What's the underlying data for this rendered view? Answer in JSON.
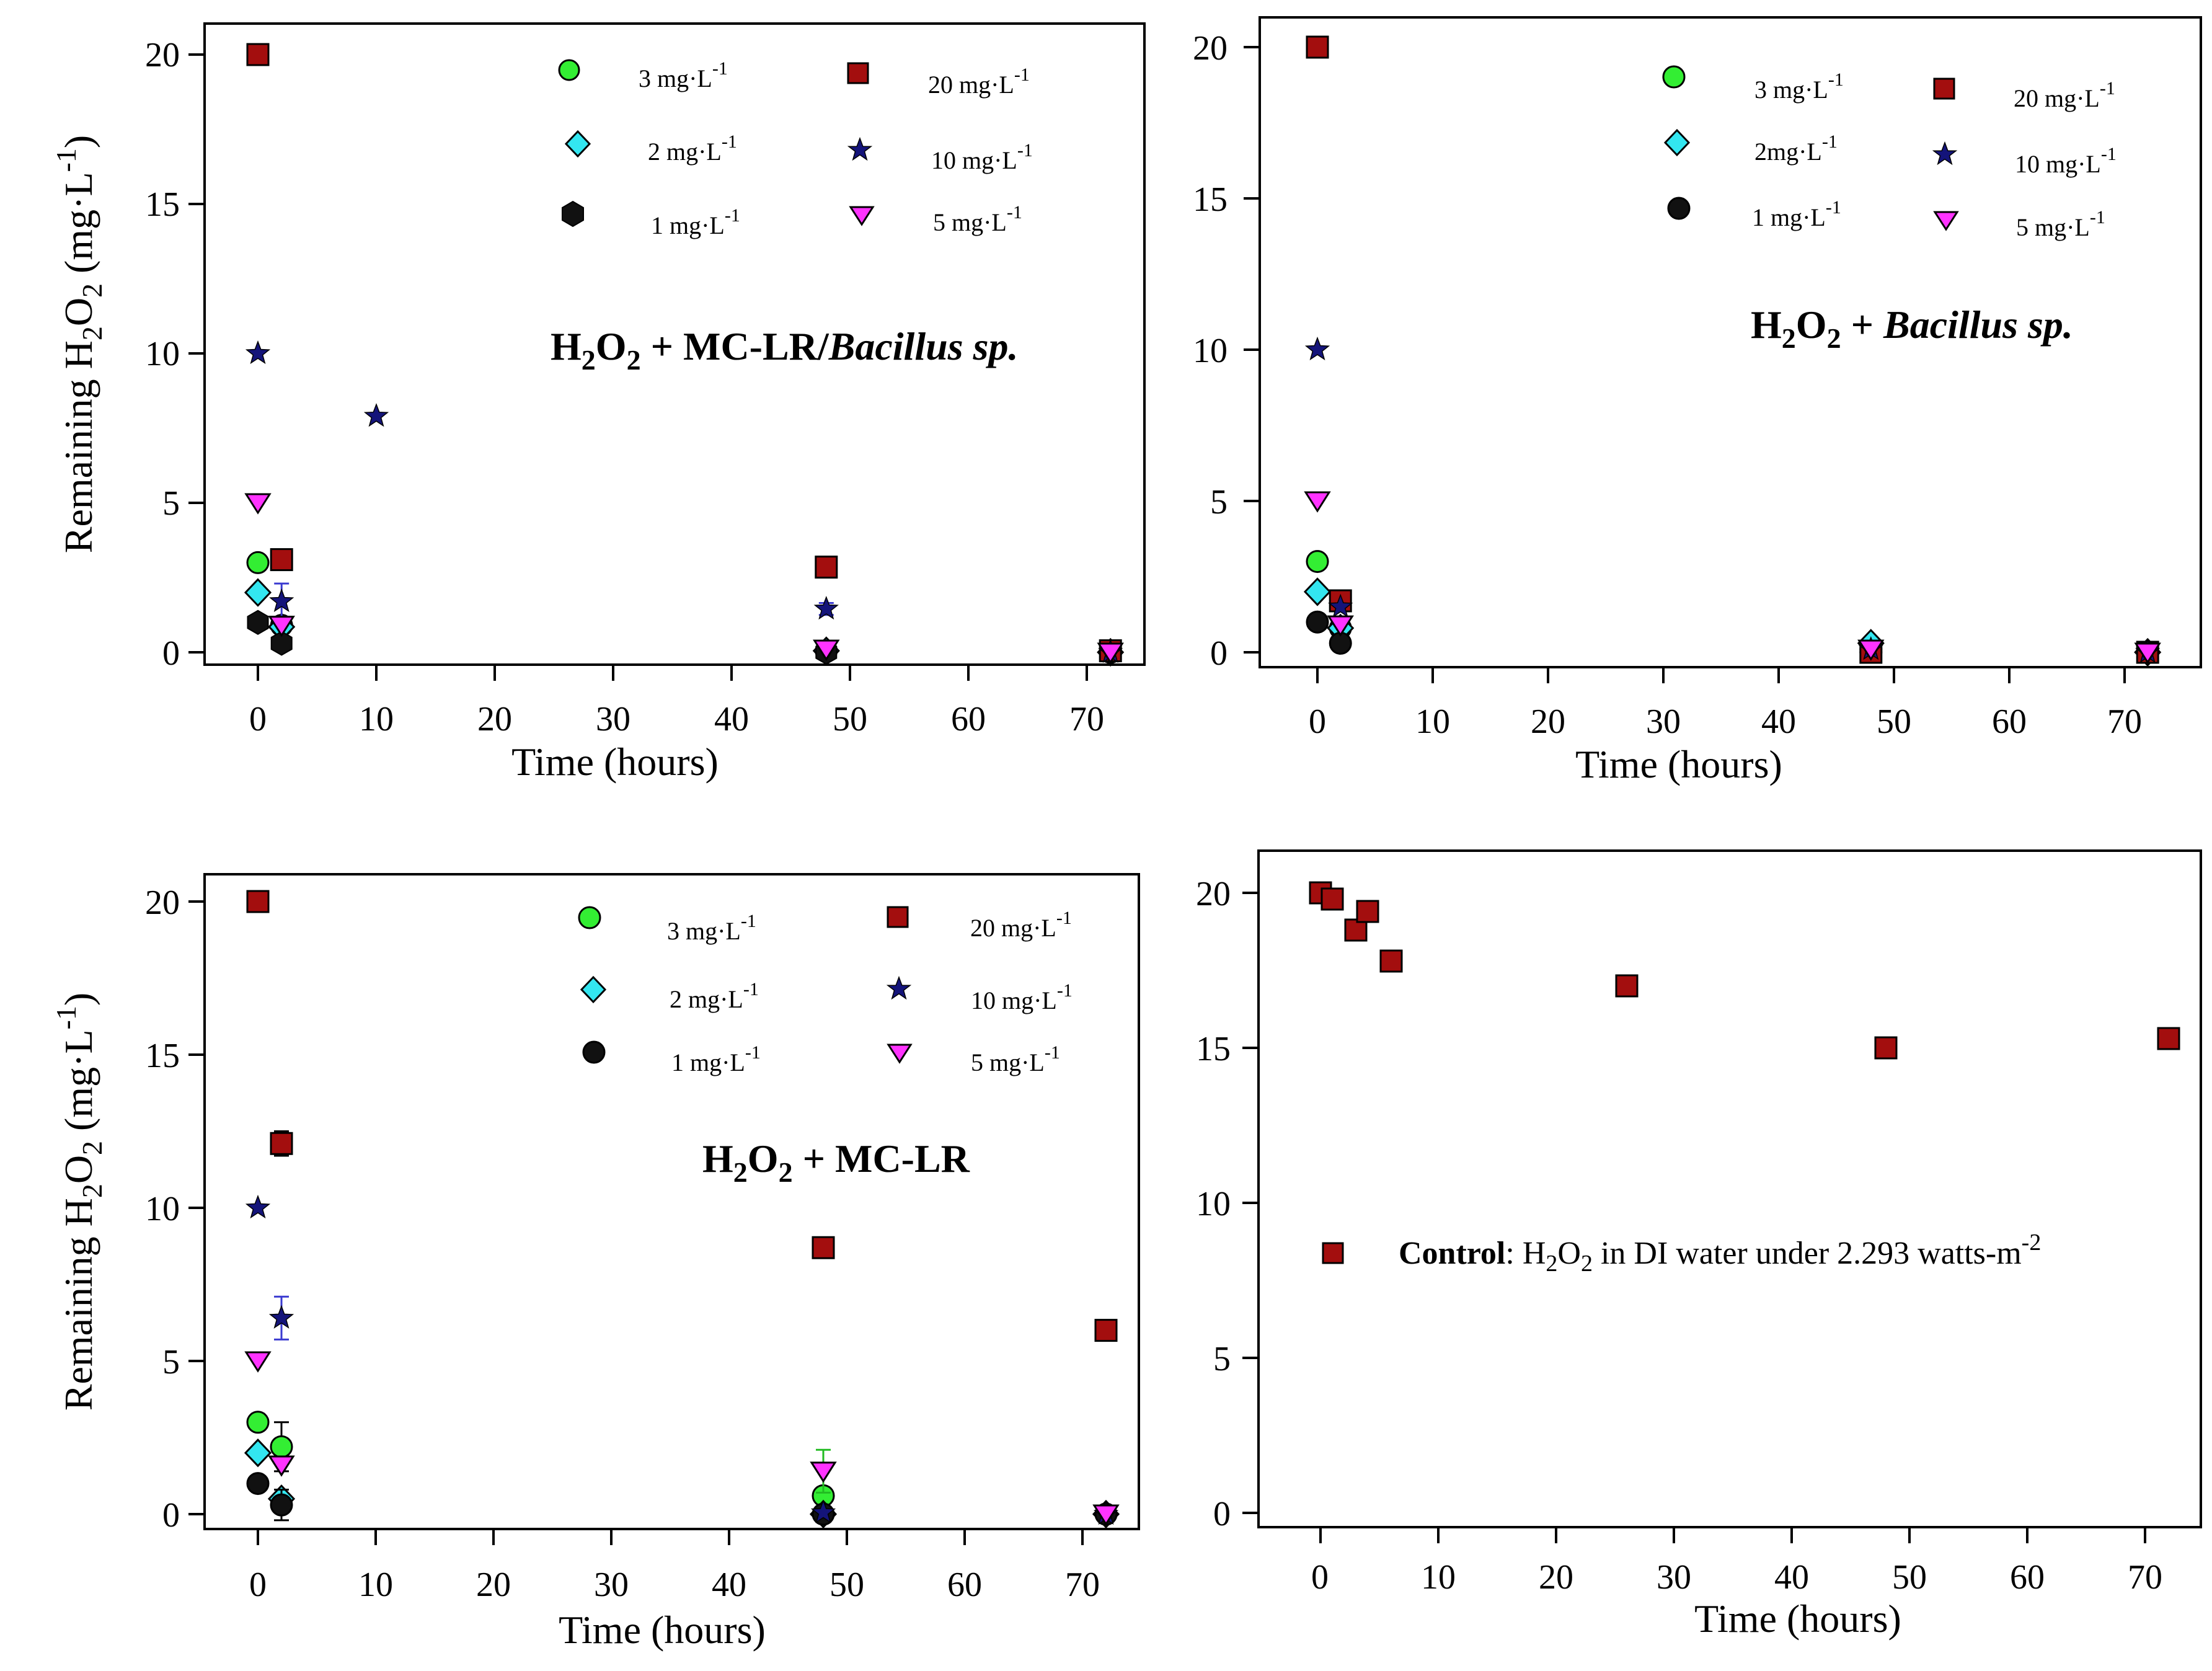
{
  "colors": {
    "s3": "#33ee33",
    "s2": "#33e6f0",
    "s1": "#111111",
    "s20": "#a30e0e",
    "s10": "#14147a",
    "s5": "#ff33ff",
    "err_s10": "#3a3ad0",
    "err_s5": "#22bb22"
  },
  "legend": {
    "s3": "3 mg·L",
    "s2": "2 mg·L",
    "s2b": "2mg·L",
    "s1": "1 mg·L",
    "s20": "20 mg·L",
    "s10": "10 mg·L",
    "s5": "5 mg·L",
    "exp": "-1"
  },
  "axes": {
    "ylabel_main": "Remaining H",
    "ylabel_sub": "2",
    "ylabel_o": "O",
    "ylabel_unit": " (mg·L",
    "ylabel_exp": "-1",
    "ylabel_close": ")",
    "xlabel": "Time (hours)",
    "xticks": [
      "0",
      "10",
      "20",
      "30",
      "40",
      "50",
      "60",
      "70"
    ],
    "yticks": [
      "0",
      "5",
      "10",
      "15",
      "20"
    ]
  },
  "annotations": {
    "p1_a": "H",
    "p1_b": "2",
    "p1_c": "O",
    "p1_d": "2",
    "p1_e": " + MC-LR/",
    "p1_f": "Bacillus sp.",
    "p2_a": "H",
    "p2_b": "2",
    "p2_c": "O",
    "p2_d": "2",
    "p2_e": " + ",
    "p2_f": "Bacillus sp.",
    "p3_a": "H",
    "p3_b": "2",
    "p3_c": "O",
    "p3_d": "2",
    "p3_e": " + MC-LR",
    "p4_bold": "Control",
    "p4_a": ": H",
    "p4_b": "2",
    "p4_c": "O",
    "p4_d": "2",
    "p4_e": " in DI water under 2.293 watts-m",
    "p4_f": "-2"
  },
  "chart_data": [
    {
      "type": "scatter",
      "title": "H2O2 + MC-LR/Bacillus sp.",
      "xlabel": "Time (hours)",
      "ylabel": "Remaining H2O2 (mg·L-1)",
      "xlim": [
        -4,
        75
      ],
      "ylim": [
        -0.5,
        21
      ],
      "series": [
        {
          "name": "3 mg·L-1",
          "key": "s3",
          "marker": "circle",
          "x": [
            0,
            2,
            48,
            72
          ],
          "y": [
            3.0,
            0.9,
            0.05,
            0.0
          ],
          "err": [
            0,
            0,
            0,
            0
          ]
        },
        {
          "name": "2 mg·L-1",
          "key": "s2",
          "marker": "diamond",
          "x": [
            0,
            2,
            48,
            72
          ],
          "y": [
            2.0,
            0.85,
            0.05,
            0.0
          ],
          "err": [
            0,
            0,
            0,
            0
          ]
        },
        {
          "name": "1 mg·L-1",
          "key": "s1",
          "marker": "hexagon",
          "x": [
            0,
            2,
            48,
            72
          ],
          "y": [
            1.0,
            0.3,
            0.0,
            0.0
          ],
          "err": [
            0,
            0,
            0,
            0
          ]
        },
        {
          "name": "20 mg·L-1",
          "key": "s20",
          "marker": "square",
          "x": [
            0,
            2,
            48,
            72
          ],
          "y": [
            20.0,
            3.1,
            2.85,
            0.05
          ],
          "err": [
            0,
            0,
            0,
            0
          ]
        },
        {
          "name": "10 mg·L-1",
          "key": "s10",
          "marker": "star",
          "x": [
            0,
            2,
            10,
            48,
            72
          ],
          "y": [
            10.0,
            1.7,
            7.9,
            1.45,
            0.0
          ],
          "err": [
            0,
            0.6,
            0,
            0.2,
            0
          ]
        },
        {
          "name": "5 mg·L-1",
          "key": "s5",
          "marker": "triangle-down",
          "x": [
            0,
            2,
            48,
            72
          ],
          "y": [
            5.0,
            0.9,
            0.1,
            0.0
          ],
          "err": [
            0,
            0,
            0,
            0
          ]
        }
      ]
    },
    {
      "type": "scatter",
      "title": "H2O2 + Bacillus sp.",
      "xlabel": "Time (hours)",
      "ylabel": "",
      "xlim": [
        -5,
        75
      ],
      "ylim": [
        -0.5,
        21
      ],
      "series": [
        {
          "name": "3 mg·L-1",
          "key": "s3",
          "marker": "circle",
          "x": [
            0,
            2,
            48,
            72
          ],
          "y": [
            3.0,
            0.8,
            0.1,
            0.0
          ],
          "err": [
            0,
            0,
            0,
            0
          ]
        },
        {
          "name": "2mg·L-1",
          "key": "s2",
          "marker": "diamond",
          "x": [
            0,
            2,
            48,
            72
          ],
          "y": [
            2.0,
            0.8,
            0.3,
            0.0
          ],
          "err": [
            0,
            0,
            0,
            0
          ]
        },
        {
          "name": "1 mg·L-1",
          "key": "s1",
          "marker": "circle",
          "x": [
            0,
            2,
            48,
            72
          ],
          "y": [
            1.0,
            0.3,
            0.0,
            0.0
          ],
          "err": [
            0,
            0,
            0,
            0
          ]
        },
        {
          "name": "20 mg·L-1",
          "key": "s20",
          "marker": "square",
          "x": [
            0,
            2,
            48,
            72
          ],
          "y": [
            20.0,
            1.7,
            0.0,
            0.0
          ],
          "err": [
            0,
            0,
            0,
            0
          ]
        },
        {
          "name": "10 mg·L-1",
          "key": "s10",
          "marker": "star",
          "x": [
            0,
            2,
            48,
            72
          ],
          "y": [
            10.0,
            1.5,
            0.1,
            0.0
          ],
          "err": [
            0,
            0,
            0,
            0
          ]
        },
        {
          "name": "5 mg·L-1",
          "key": "s5",
          "marker": "triangle-down",
          "x": [
            0,
            2,
            48,
            72
          ],
          "y": [
            5.0,
            0.9,
            0.1,
            0.0
          ],
          "err": [
            0,
            0,
            0,
            0
          ]
        }
      ]
    },
    {
      "type": "scatter",
      "title": "H2O2 + MC-LR",
      "xlabel": "Time (hours)",
      "ylabel": "Remaining H2O2 (mg·L-1)",
      "xlim": [
        -4,
        75
      ],
      "ylim": [
        -0.5,
        21
      ],
      "series": [
        {
          "name": "3 mg·L-1",
          "key": "s3",
          "marker": "circle",
          "x": [
            0,
            2,
            48,
            72
          ],
          "y": [
            3.0,
            2.2,
            0.6,
            0.0
          ],
          "err": [
            0,
            0.8,
            0,
            0
          ]
        },
        {
          "name": "2 mg·L-1",
          "key": "s2",
          "marker": "diamond",
          "x": [
            0,
            2,
            48,
            72
          ],
          "y": [
            2.0,
            0.5,
            0.0,
            0.0
          ],
          "err": [
            0,
            0,
            0,
            0
          ]
        },
        {
          "name": "1 mg·L-1",
          "key": "s1",
          "marker": "circle",
          "x": [
            0,
            2,
            48,
            72
          ],
          "y": [
            1.0,
            0.3,
            0.0,
            0.0
          ],
          "err": [
            0,
            0.5,
            0,
            0
          ]
        },
        {
          "name": "20 mg·L-1",
          "key": "s20",
          "marker": "square",
          "x": [
            0,
            2,
            48,
            72
          ],
          "y": [
            20.0,
            12.1,
            8.7,
            6.0
          ],
          "err": [
            0,
            0.4,
            0,
            0
          ]
        },
        {
          "name": "10 mg·L-1",
          "key": "s10",
          "marker": "star",
          "x": [
            0,
            2,
            48,
            72
          ],
          "y": [
            10.0,
            6.4,
            0.05,
            0.0
          ],
          "err": [
            0,
            0.7,
            0,
            0
          ]
        },
        {
          "name": "5 mg·L-1",
          "key": "s5",
          "marker": "triangle-down",
          "x": [
            0,
            2,
            48,
            72
          ],
          "y": [
            5.0,
            1.6,
            1.4,
            0.0
          ],
          "err": [
            0,
            0,
            0.7,
            0
          ]
        }
      ]
    },
    {
      "type": "scatter",
      "title": "Control: H2O2 in DI water under 2.293 watts-m-2",
      "xlabel": "Time (hours)",
      "ylabel": "",
      "xlim": [
        -5,
        75
      ],
      "ylim": [
        -1,
        21
      ],
      "series": [
        {
          "name": "Control",
          "key": "s20",
          "marker": "square",
          "x": [
            0,
            1,
            3,
            4,
            6,
            26,
            48,
            72
          ],
          "y": [
            20.0,
            19.8,
            18.8,
            19.4,
            17.8,
            17.0,
            15.0,
            15.3
          ],
          "err": [
            0,
            0,
            0,
            0,
            0,
            0,
            0,
            0
          ]
        }
      ]
    }
  ]
}
